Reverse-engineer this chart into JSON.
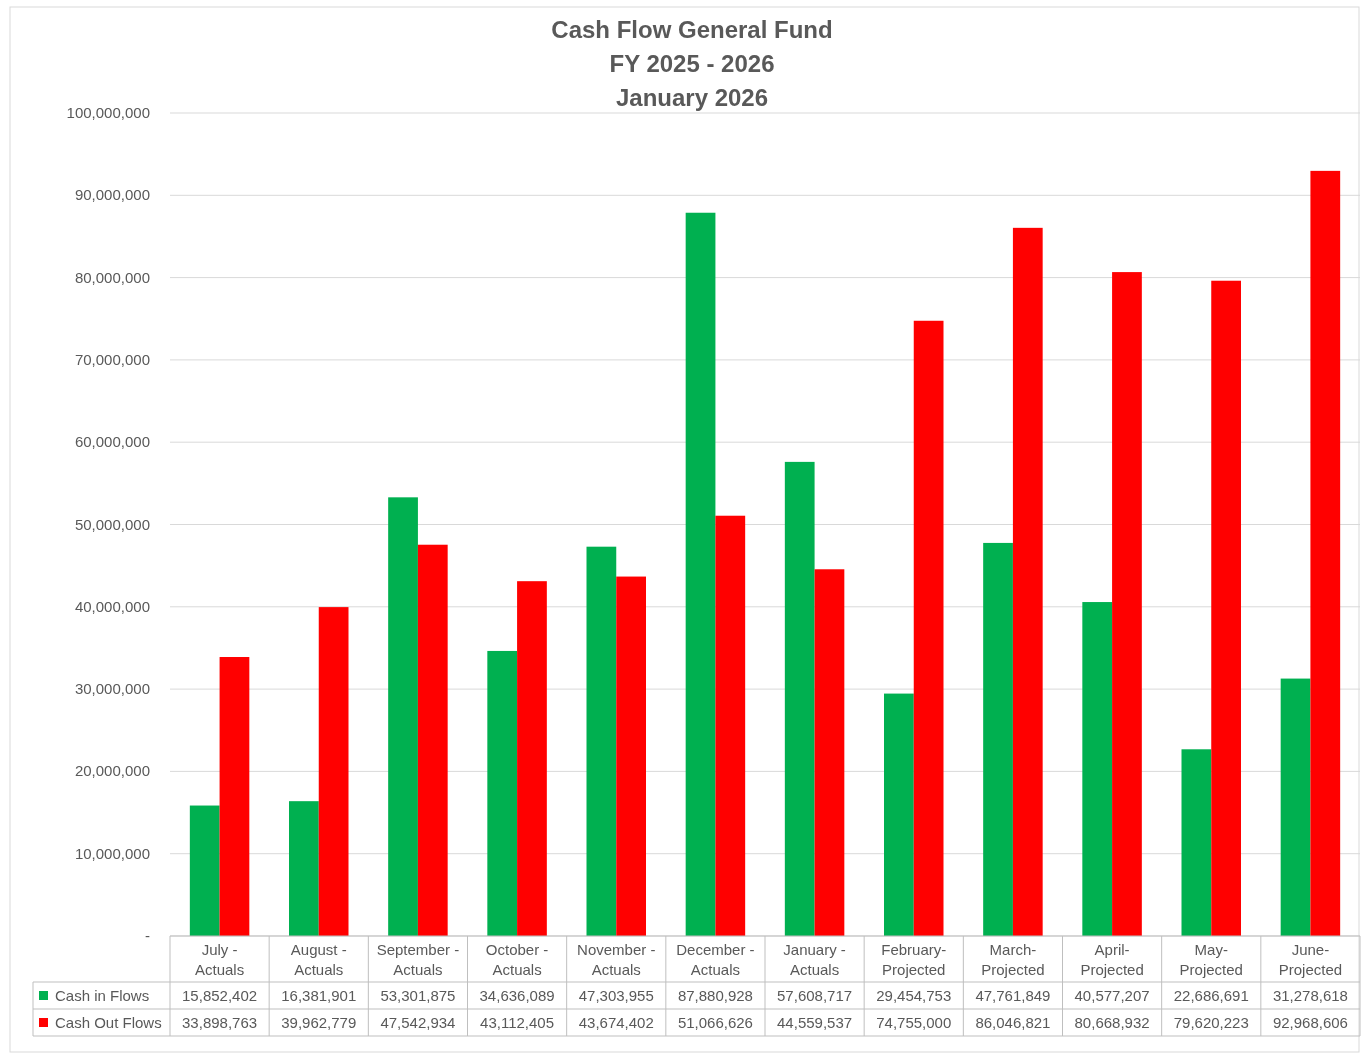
{
  "chart_data": {
    "type": "bar",
    "title": "Cash Flow General Fund",
    "subtitle": "FY 2025 - 2026\nJanuary 2026",
    "categories": [
      "July - Actuals",
      "August - Actuals",
      "September - Actuals",
      "October - Actuals",
      "November - Actuals",
      "December - Actuals",
      "January - Actuals",
      "February-Projected",
      "March-Projected",
      "April-Projected",
      "May-Projected",
      "June-Projected"
    ],
    "series": [
      {
        "name": "Cash in Flows",
        "color": "#00b050",
        "values": [
          15852402,
          16381901,
          53301875,
          34636089,
          47303955,
          87880928,
          57608717,
          29454753,
          47761849,
          40577207,
          22686691,
          31278618
        ],
        "value_labels": [
          "15,852,402",
          "16,381,901",
          "53,301,875",
          "34,636,089",
          "47,303,955",
          "87,880,928",
          "57,608,717",
          "29,454,753",
          "47,761,849",
          "40,577,207",
          "22,686,691",
          "31,278,618"
        ]
      },
      {
        "name": "Cash Out Flows",
        "color": "#ff0000",
        "values": [
          33898763,
          39962779,
          47542934,
          43112405,
          43674402,
          51066626,
          44559537,
          74755000,
          86046821,
          80668932,
          79620223,
          92968606
        ],
        "value_labels": [
          "33,898,763",
          "39,962,779",
          "47,542,934",
          "43,112,405",
          "43,674,402",
          "51,066,626",
          "44,559,537",
          "74,755,000",
          "86,046,821",
          "80,668,932",
          "79,620,223",
          "92,968,606"
        ]
      }
    ],
    "ylim": [
      0,
      100000000
    ],
    "yticks": [
      {
        "value": 0,
        "label": "-"
      },
      {
        "value": 10000000,
        "label": "10,000,000"
      },
      {
        "value": 20000000,
        "label": "20,000,000"
      },
      {
        "value": 30000000,
        "label": "30,000,000"
      },
      {
        "value": 40000000,
        "label": "40,000,000"
      },
      {
        "value": 50000000,
        "label": "50,000,000"
      },
      {
        "value": 60000000,
        "label": "60,000,000"
      },
      {
        "value": 70000000,
        "label": "70,000,000"
      },
      {
        "value": 80000000,
        "label": "80,000,000"
      },
      {
        "value": 90000000,
        "label": "90,000,000"
      },
      {
        "value": 100000000,
        "label": "100,000,000"
      }
    ],
    "grid": "y",
    "legend": "bottom"
  }
}
